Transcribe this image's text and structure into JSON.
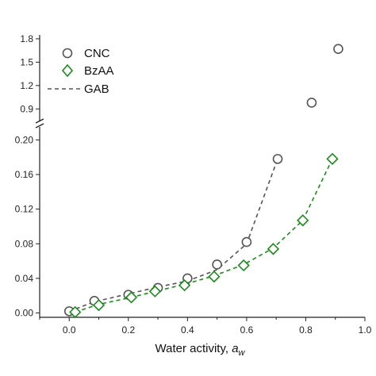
{
  "chart_data": {
    "type": "scatter",
    "xlabel": "Water activity, ",
    "xlabel_symbol": "a",
    "xlabel_subscript": "w",
    "xlim": [
      -0.1,
      1.0
    ],
    "x_ticks": [
      "0.0",
      "0.2",
      "0.4",
      "0.6",
      "0.8",
      "1.0"
    ],
    "x_tick_values": [
      0.0,
      0.2,
      0.4,
      0.6,
      0.8,
      1.0
    ],
    "y_axis_break": true,
    "y_lower": {
      "ylim": [
        -0.005,
        0.215
      ],
      "ticks": [
        "0.00",
        "0.04",
        "0.08",
        "0.12",
        "0.16",
        "0.20"
      ],
      "tick_values": [
        0.0,
        0.04,
        0.08,
        0.12,
        0.16,
        0.2
      ]
    },
    "y_upper": {
      "ylim": [
        0.75,
        1.85
      ],
      "ticks": [
        "0.9",
        "1.2",
        "1.5",
        "1.8"
      ],
      "tick_values": [
        0.9,
        1.2,
        1.5,
        1.8
      ]
    },
    "legend": {
      "position": "top-left",
      "entries": [
        "CNC",
        "BzAA",
        "GAB"
      ]
    },
    "series": [
      {
        "name": "CNC",
        "marker": "circle",
        "color": "#555555",
        "x": [
          0.0,
          0.085,
          0.2,
          0.3,
          0.4,
          0.5,
          0.6,
          0.705,
          0.82,
          0.91
        ],
        "y": [
          0.002,
          0.014,
          0.021,
          0.029,
          0.04,
          0.056,
          0.082,
          0.178,
          0.98,
          1.67
        ]
      },
      {
        "name": "BzAA",
        "marker": "diamond",
        "color": "#1a8a1a",
        "x": [
          0.02,
          0.1,
          0.21,
          0.29,
          0.39,
          0.49,
          0.59,
          0.69,
          0.79,
          0.89
        ],
        "y": [
          0.001,
          0.009,
          0.018,
          0.025,
          0.032,
          0.042,
          0.055,
          0.074,
          0.107,
          0.178
        ]
      }
    ],
    "fit_lines": [
      {
        "name": "GAB",
        "of": "CNC",
        "style": "dashed",
        "color": "#555555",
        "x": [
          0.0,
          0.085,
          0.2,
          0.3,
          0.4,
          0.5,
          0.6,
          0.705
        ],
        "y": [
          0.002,
          0.013,
          0.022,
          0.03,
          0.037,
          0.05,
          0.08,
          0.178
        ]
      },
      {
        "name": "",
        "of": "BzAA",
        "style": "dashed",
        "color": "#1a8a1a",
        "x": [
          0.02,
          0.1,
          0.21,
          0.29,
          0.39,
          0.49,
          0.59,
          0.69,
          0.79,
          0.89
        ],
        "y": [
          0.001,
          0.01,
          0.018,
          0.025,
          0.033,
          0.043,
          0.056,
          0.075,
          0.107,
          0.178
        ]
      }
    ]
  }
}
